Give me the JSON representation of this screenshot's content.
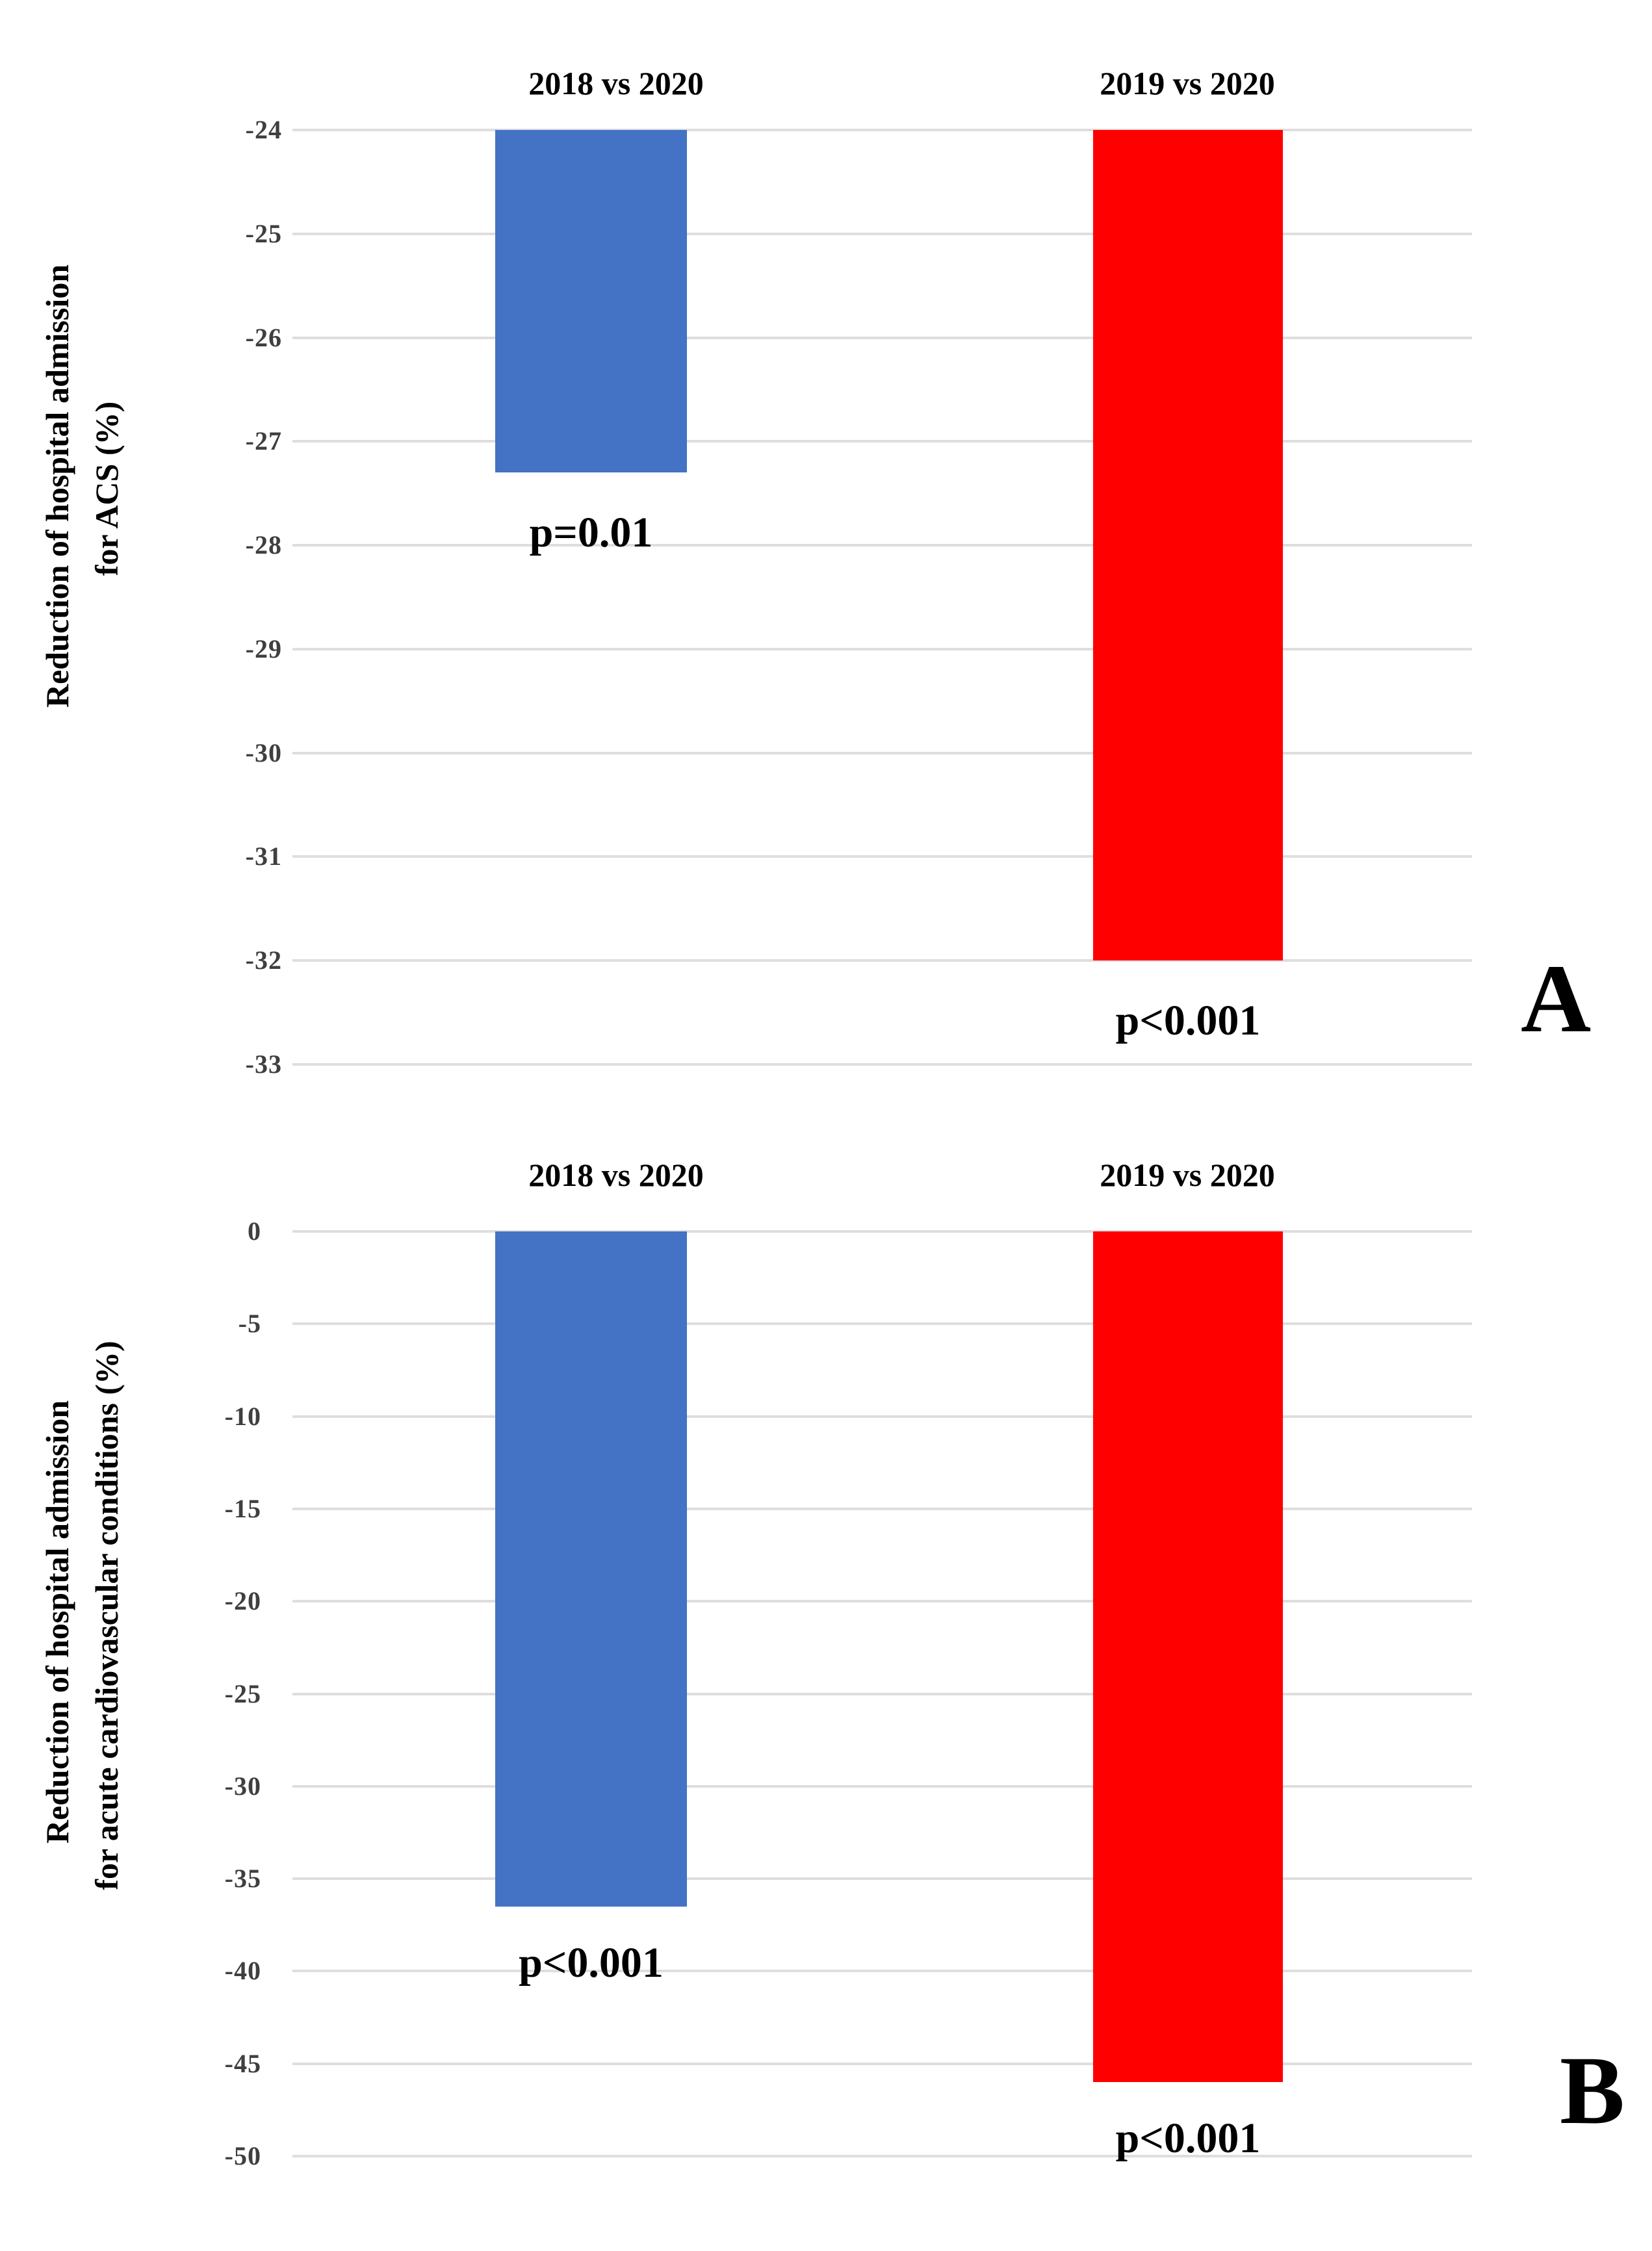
{
  "figure": {
    "background_color": "#ffffff",
    "gridline_color": "#dedede",
    "tick_label_color": "#3f3f3f",
    "text_color": "#000000"
  },
  "chart_data": [
    {
      "id": "A",
      "type": "bar",
      "panel_letter": "A",
      "ylabel_line1": "Reduction of hospital admission",
      "ylabel_line2": "for ACS (%)",
      "categories": [
        "2018 vs 2020",
        "2019 vs 2020"
      ],
      "values": [
        -27.3,
        -32.0
      ],
      "bar_colors": [
        "#4472C4",
        "#FF0000"
      ],
      "p_labels": [
        "p=0.01",
        "p<0.001"
      ],
      "baseline": -24,
      "ylim": [
        -33,
        -24
      ],
      "yticks": [
        -24,
        -25,
        -26,
        -27,
        -28,
        -29,
        -30,
        -31,
        -32,
        -33
      ],
      "ytick_labels": [
        "-24",
        "-25",
        "-26",
        "-27",
        "-28",
        "-29",
        "-30",
        "-31",
        "-32",
        "-33"
      ],
      "grid": true,
      "legend_position": "none"
    },
    {
      "id": "B",
      "type": "bar",
      "panel_letter": "B",
      "ylabel_line1": "Reduction of hospital admission",
      "ylabel_line2": "for acute cardiovascular conditions (%)",
      "categories": [
        "2018 vs 2020",
        "2019 vs 2020"
      ],
      "values": [
        -36.5,
        -46.0
      ],
      "bar_colors": [
        "#4472C4",
        "#FF0000"
      ],
      "p_labels": [
        "p<0.001",
        "p<0.001"
      ],
      "baseline": 0,
      "ylim": [
        -50,
        0
      ],
      "yticks": [
        0,
        -5,
        -10,
        -15,
        -20,
        -25,
        -30,
        -35,
        -40,
        -45,
        -50
      ],
      "ytick_labels": [
        "0",
        "-5",
        "-10",
        "-15",
        "-20",
        "-25",
        "-30",
        "-35",
        "-40",
        "-45",
        "-50"
      ],
      "grid": true,
      "legend_position": "none"
    }
  ]
}
